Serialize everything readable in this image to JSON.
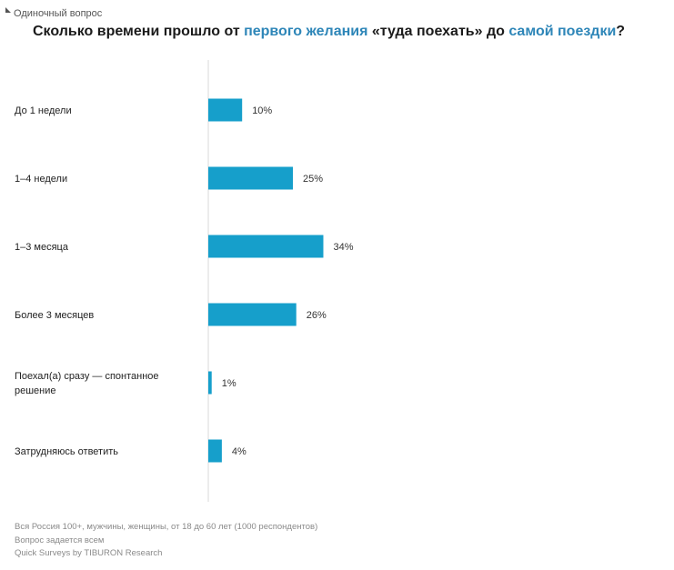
{
  "kicker": "Одиночный вопрос",
  "title": {
    "part1": "Сколько времени прошло от ",
    "hl1": "первого желания",
    "part2": " «туда поехать» до ",
    "hl2": "самой поездки",
    "part3": "?"
  },
  "colors": {
    "bar": "#169fcb",
    "axis": "#d9d9d9",
    "highlight": "#2e86b8"
  },
  "chart_data": {
    "type": "bar",
    "orientation": "horizontal",
    "categories": [
      [
        "До 1 недели"
      ],
      [
        "1–4 недели"
      ],
      [
        "1–3 месяца"
      ],
      [
        "Более 3 месяцев"
      ],
      [
        "Поехал(а) сразу — спонтанное",
        "решение"
      ],
      [
        "Затрудняюсь ответить"
      ]
    ],
    "values": [
      10,
      25,
      34,
      26,
      1,
      4
    ],
    "value_labels": [
      "10%",
      "25%",
      "34%",
      "26%",
      "1%",
      "4%"
    ],
    "unit": "%",
    "xlim": [
      0,
      100
    ],
    "grid": false
  },
  "footer": {
    "line1": "Вся Россия 100+, мужчины, женщины, от 18 до 60 лет (1000 респондентов)",
    "line2": "Вопрос задается всем",
    "line3": "Quick Surveys by TIBURON Research"
  }
}
